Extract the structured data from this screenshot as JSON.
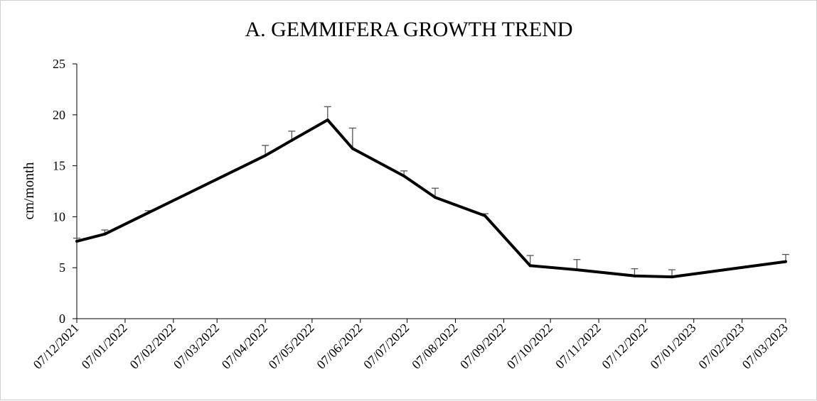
{
  "chart_data": {
    "type": "line",
    "title": "A. GEMMIFERA GROWTH TREND",
    "xlabel": "",
    "ylabel": "cm/month",
    "ylim": [
      0,
      25
    ],
    "yticks": [
      "0",
      "5",
      "10",
      "15",
      "20",
      "25"
    ],
    "xticks": [
      "07/12/2021",
      "07/01/2022",
      "07/02/2022",
      "07/03/2022",
      "07/04/2022",
      "07/05/2022",
      "07/06/2022",
      "07/07/2022",
      "07/08/2022",
      "07/09/2022",
      "07/10/2022",
      "07/11/2022",
      "07/12/2022",
      "07/01/2023",
      "07/02/2023",
      "07/03/2023"
    ],
    "xlim": [
      "2021-12-07",
      "2023-03-07"
    ],
    "grid": false,
    "series": [
      {
        "color": "#000000",
        "points": [
          {
            "x": "2021-12-07",
            "y": 7.6,
            "err": 0.3
          },
          {
            "x": "2021-12-25",
            "y": 8.3,
            "err": 0.4
          },
          {
            "x": "2022-01-22",
            "y": 10.4,
            "err": 0.2
          },
          {
            "x": "2022-04-07",
            "y": 16.0,
            "err": 1.0
          },
          {
            "x": "2022-04-24",
            "y": 17.5,
            "err": 0.9
          },
          {
            "x": "2022-05-17",
            "y": 19.5,
            "err": 1.3
          },
          {
            "x": "2022-06-02",
            "y": 16.7,
            "err": 2.0
          },
          {
            "x": "2022-07-05",
            "y": 14.0,
            "err": 0.5
          },
          {
            "x": "2022-07-25",
            "y": 11.9,
            "err": 0.9
          },
          {
            "x": "2022-08-26",
            "y": 10.1,
            "err": 0.2
          },
          {
            "x": "2022-09-24",
            "y": 5.2,
            "err": 1.0
          },
          {
            "x": "2022-10-24",
            "y": 4.8,
            "err": 1.0
          },
          {
            "x": "2022-11-30",
            "y": 4.2,
            "err": 0.7
          },
          {
            "x": "2022-12-24",
            "y": 4.1,
            "err": 0.7
          },
          {
            "x": "2023-03-07",
            "y": 5.6,
            "err": 0.7
          }
        ]
      }
    ]
  }
}
